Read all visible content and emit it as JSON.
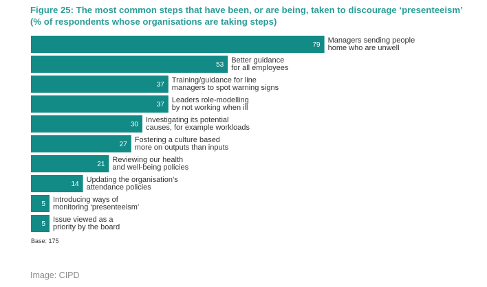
{
  "figure": {
    "title_line1": "Figure 25: The most common steps that have been, or are being, taken to discourage ‘presenteeism’",
    "title_line2": "(% of respondents whose organisations are taking steps)",
    "base": "Base: 175",
    "credit": "Image: CIPD"
  },
  "colors": {
    "bar": "#128a86",
    "title": "#2a9d98"
  },
  "chart_data": {
    "type": "bar",
    "orientation": "horizontal",
    "title": "Figure 25: The most common steps that have been, or are being, taken to discourage ‘presenteeism’",
    "subtitle": "(% of respondents whose organisations are taking steps)",
    "xlim": [
      0,
      100
    ],
    "categories": [
      [
        "Managers sending people",
        "home who are unwell"
      ],
      [
        "Better guidance",
        "for all employees"
      ],
      [
        "Training/guidance for line",
        "managers to spot warning signs"
      ],
      [
        "Leaders role-modelling",
        "by not working when ill"
      ],
      [
        "Investigating its potential",
        "causes, for example workloads"
      ],
      [
        "Fostering a culture based",
        "more on outputs than inputs"
      ],
      [
        "Reviewing our health",
        "and well-being policies"
      ],
      [
        "Updating the organisation’s",
        "attendance policies"
      ],
      [
        "Introducing ways of",
        "monitoring ‘presenteeism’"
      ],
      [
        "Issue viewed as a",
        "priority by the board"
      ]
    ],
    "values": [
      79,
      53,
      37,
      37,
      30,
      27,
      21,
      14,
      5,
      5
    ],
    "data_labels": true,
    "grid": false,
    "legend": "none"
  }
}
